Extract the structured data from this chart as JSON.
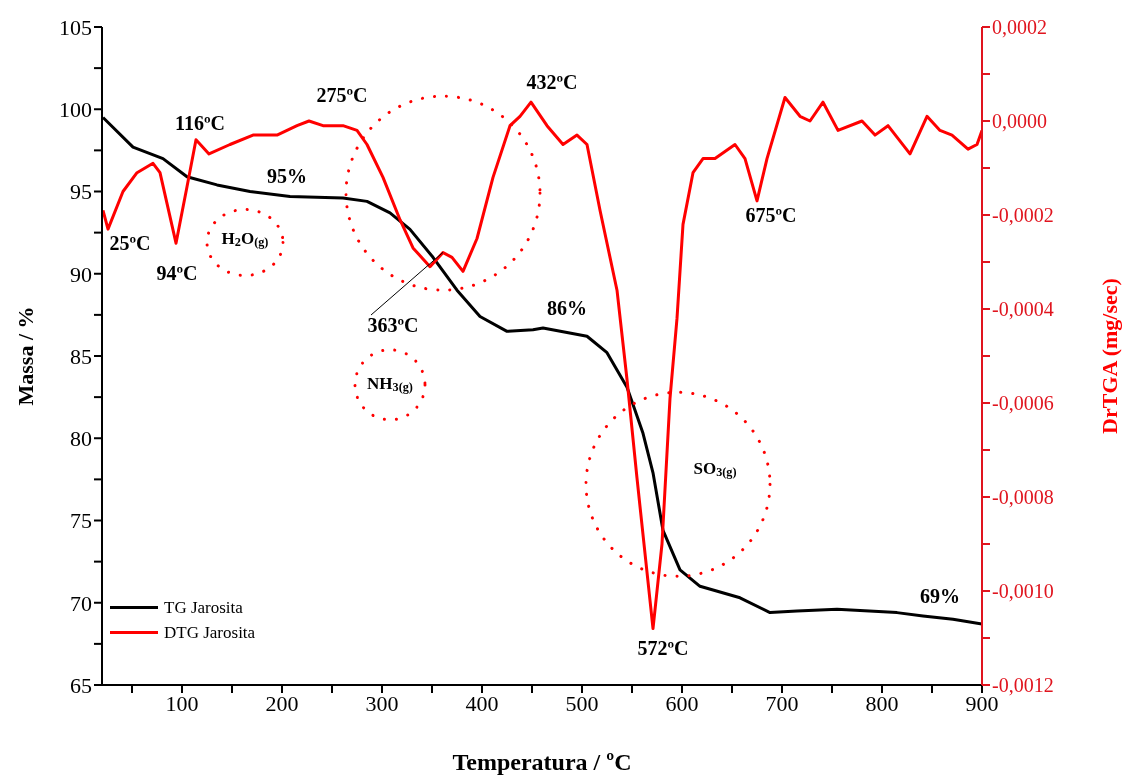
{
  "chart_data": {
    "type": "line",
    "xlabel": "Temperatura / ºC",
    "ylabel": "Massa / %",
    "y2label": "DrTGA (mg/sec)",
    "xlim": [
      20,
      900
    ],
    "xticks": [
      {
        "value": 50,
        "label": null
      },
      100,
      {
        "value": 150,
        "label": null
      },
      200,
      {
        "value": 250,
        "label": null
      },
      300,
      {
        "value": 350,
        "label": null
      },
      400,
      {
        "value": 450,
        "label": null
      },
      500,
      {
        "value": 550,
        "label": null
      },
      600,
      {
        "value": 650,
        "label": null
      },
      700,
      {
        "value": 750,
        "label": null
      },
      800,
      {
        "value": 850,
        "label": null
      },
      900
    ],
    "ylim": [
      65,
      105
    ],
    "yticks": [
      65,
      {
        "value": 67.5,
        "label": null
      },
      70,
      {
        "value": 72.5,
        "label": null
      },
      75,
      {
        "value": 77.5,
        "label": null
      },
      80,
      {
        "value": 82.5,
        "label": null
      },
      85,
      {
        "value": 87.5,
        "label": null
      },
      90,
      {
        "value": 92.5,
        "label": null
      },
      95,
      {
        "value": 97.5,
        "label": null
      },
      100,
      {
        "value": 102.5,
        "label": null
      },
      105
    ],
    "y2lim": [
      -0.0012,
      0.0002
    ],
    "y2ticks": [
      {
        "value": -0.0012,
        "label": "-0,0012"
      },
      {
        "value": -0.0011,
        "label": null
      },
      {
        "value": -0.001,
        "label": "-0,0010"
      },
      {
        "value": -0.0009,
        "label": null
      },
      {
        "value": -0.0008,
        "label": "-0,0008"
      },
      {
        "value": -0.0007,
        "label": null
      },
      {
        "value": -0.0006,
        "label": "-0,0006"
      },
      {
        "value": -0.0005,
        "label": null
      },
      {
        "value": -0.0004,
        "label": "-0,0004"
      },
      {
        "value": -0.0003,
        "label": null
      },
      {
        "value": -0.0002,
        "label": "-0,0002"
      },
      {
        "value": -0.0001,
        "label": null
      },
      {
        "value": 0,
        "label": "0,0000"
      },
      {
        "value": 0.0001,
        "label": null
      },
      {
        "value": 0.0002,
        "label": "0,0002"
      }
    ],
    "grid": false,
    "legend": "bottom left",
    "marker": "none",
    "line_style": "solid",
    "series": [
      {
        "name": "TG Jarosita",
        "color": "#000000",
        "x": [
          21,
          51,
          81,
          105,
          135,
          168,
          208,
          261,
          285,
          308,
          328,
          351,
          375,
          398,
          425,
          451,
          461,
          505,
          525,
          545,
          561,
          571,
          581,
          598,
          618,
          658,
          688,
          715,
          755,
          815,
          841,
          871,
          900
        ],
        "values": [
          99.5,
          97.7,
          97.0,
          95.9,
          95.4,
          95.0,
          94.7,
          94.6,
          94.4,
          93.7,
          92.7,
          91.0,
          89.0,
          87.4,
          86.5,
          86.6,
          86.7,
          86.2,
          85.2,
          83.1,
          80.3,
          77.9,
          74.4,
          72.0,
          71.0,
          70.3,
          69.4,
          69.5,
          69.6,
          69.4,
          69.2,
          69.0,
          68.7
        ]
      },
      {
        "name": "DTG Jarosita",
        "color": "#ff0000",
        "axis": "y2",
        "x": [
          21,
          26,
          41,
          55,
          71,
          78,
          94,
          105,
          114,
          127,
          148,
          171,
          195,
          215,
          227,
          241,
          261,
          275,
          285,
          301,
          318,
          331,
          348,
          361,
          370,
          381,
          395,
          411,
          428,
          438,
          449,
          465,
          481,
          495,
          505,
          518,
          535,
          545,
          555,
          571,
          580,
          588,
          595,
          601,
          611,
          621,
          633,
          653,
          663,
          675,
          685,
          703,
          718,
          728,
          741,
          756,
          780,
          793,
          806,
          828,
          845,
          858,
          870,
          886,
          895,
          900
        ],
        "values": [
          -0.00019,
          -0.00023,
          -0.00015,
          -0.00011,
          -9e-05,
          -0.00011,
          -0.00026,
          -0.00014,
          -4e-05,
          -7e-05,
          -5e-05,
          -3e-05,
          -3e-05,
          -1e-05,
          0,
          -1e-05,
          -1e-05,
          -2e-05,
          -5e-05,
          -0.00012,
          -0.00021,
          -0.00027,
          -0.00031,
          -0.00028,
          -0.00029,
          -0.00032,
          -0.00025,
          -0.00012,
          -1e-05,
          1e-05,
          4e-05,
          -1e-05,
          -5e-05,
          -3e-05,
          -5e-05,
          -0.00019,
          -0.00036,
          -0.00055,
          -0.00076,
          -0.00108,
          -0.0009,
          -0.00059,
          -0.00042,
          -0.00022,
          -0.00011,
          -8e-05,
          -8e-05,
          -5e-05,
          -8e-05,
          -0.00017,
          -8e-05,
          5e-05,
          1e-05,
          0,
          4e-05,
          -2e-05,
          0,
          -3e-05,
          -1e-05,
          -7e-05,
          1e-05,
          -2e-05,
          -3e-05,
          -6e-05,
          -5e-05,
          -2e-05
        ]
      }
    ],
    "annotations": [
      "25ºC",
      "94ºC",
      "116ºC",
      "275ºC",
      "95%",
      "432ºC",
      {
        "text": "363ºC",
        "x": 361,
        "y": 91.3
      },
      "86%",
      "675ºC",
      "572ºC",
      "69%",
      "H$_{2}$O$_{(g)}$",
      "NH$_{3(g)}$",
      "SO$_{3(g)}$"
    ]
  }
}
